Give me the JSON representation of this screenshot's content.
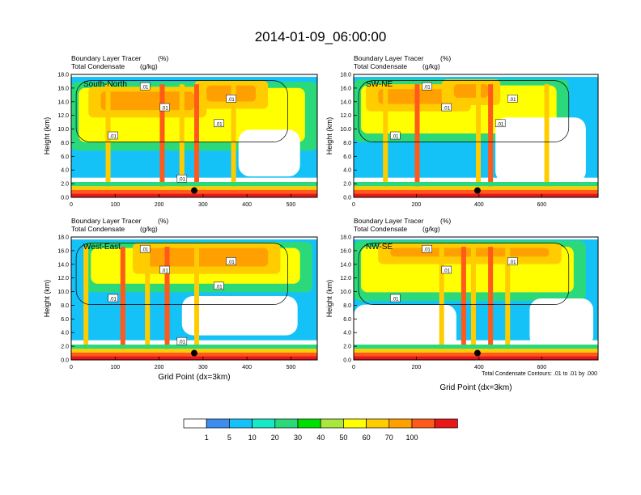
{
  "main_title": "2014-01-09_06:00:00",
  "shared": {
    "ylabel": "Height (km)",
    "xlabel": "Grid Point (dx=3km)",
    "left_string_1": "Boundary Layer Tracer",
    "left_string_2": "Total Condensate",
    "right_string_1": "(%)",
    "right_string_2": "(g/kg)",
    "contour_info": "Total Condensate Contours: .01 to .01 by .000"
  },
  "colorbar": {
    "levels": [
      "1",
      "5",
      "10",
      "20",
      "30",
      "40",
      "50",
      "60",
      "70",
      "100"
    ],
    "colors": [
      "#ffffff",
      "#3d8cf0",
      "#15c2f7",
      "#17e8c8",
      "#2bd97a",
      "#00e000",
      "#a8e83c",
      "#ffff00",
      "#ffcc00",
      "#ffa000",
      "#ff5a1a",
      "#e81818"
    ]
  },
  "chart_data": [
    {
      "type": "heatmap",
      "panel_label": "South-North",
      "title_left": [
        "Boundary Layer Tracer",
        "Total Condensate"
      ],
      "title_right": [
        "(%)",
        "(g/kg)"
      ],
      "xlim": [
        0,
        560
      ],
      "ylim": [
        0,
        18
      ],
      "xticks": [
        "0",
        "100",
        "200",
        "300",
        "400",
        "500"
      ],
      "yticks": [
        "0.0",
        "2.0",
        "4.0",
        "6.0",
        "8.0",
        "10.0",
        "12.0",
        "14.0",
        "16.0",
        "18.0"
      ],
      "ylabel": "Height (km)",
      "contour_labels": [
        ".01",
        ".01",
        ".01",
        ".01",
        ".01",
        ".01"
      ],
      "marker_point": [
        280,
        1.0
      ]
    },
    {
      "type": "heatmap",
      "panel_label": "SW-NE",
      "title_left": [
        "Boundary Layer Tracer",
        "Total Condensate"
      ],
      "title_right": [
        "(%)",
        "(g/kg)"
      ],
      "xlim": [
        0,
        780
      ],
      "ylim": [
        0,
        18
      ],
      "xticks": [
        "0",
        "200",
        "400",
        "600"
      ],
      "yticks": [
        "0.0",
        "2.0",
        "4.0",
        "6.0",
        "8.0",
        "10.0",
        "12.0",
        "14.0",
        "16.0",
        "18.0"
      ],
      "ylabel": "Height (km)",
      "contour_labels": [
        ".01",
        ".01",
        ".01",
        ".01",
        ".01"
      ],
      "marker_point": [
        395,
        1.0
      ]
    },
    {
      "type": "heatmap",
      "panel_label": "West-East",
      "title_left": [
        "Boundary Layer Tracer",
        "Total Condensate"
      ],
      "title_right": [
        "(%)",
        "(g/kg)"
      ],
      "xlim": [
        0,
        560
      ],
      "ylim": [
        0,
        18
      ],
      "xticks": [
        "0",
        "100",
        "200",
        "300",
        "400",
        "500"
      ],
      "yticks": [
        "0.0",
        "2.0",
        "4.0",
        "6.0",
        "8.0",
        "10.0",
        "12.0",
        "14.0",
        "16.0",
        "18.0"
      ],
      "ylabel": "Height (km)",
      "xlabel": "Grid Point (dx=3km)",
      "contour_labels": [
        ".01",
        ".01",
        ".01",
        ".01",
        ".01",
        ".01"
      ],
      "marker_point": [
        280,
        1.0
      ]
    },
    {
      "type": "heatmap",
      "panel_label": "NW-SE",
      "title_left": [
        "Boundary Layer Tracer",
        "Total Condensate"
      ],
      "title_right": [
        "(%)",
        "(g/kg)"
      ],
      "xlim": [
        0,
        780
      ],
      "ylim": [
        0,
        18
      ],
      "xticks": [
        "0",
        "200",
        "400",
        "600"
      ],
      "yticks": [
        "0.0",
        "2.0",
        "4.0",
        "6.0",
        "8.0",
        "10.0",
        "12.0",
        "14.0",
        "16.0",
        "18.0"
      ],
      "ylabel": "Height (km)",
      "xlabel": "Grid Point (dx=3km)",
      "contour_labels": [
        ".01",
        ".01",
        ".01",
        ".01"
      ],
      "marker_point": [
        395,
        1.0
      ]
    }
  ]
}
